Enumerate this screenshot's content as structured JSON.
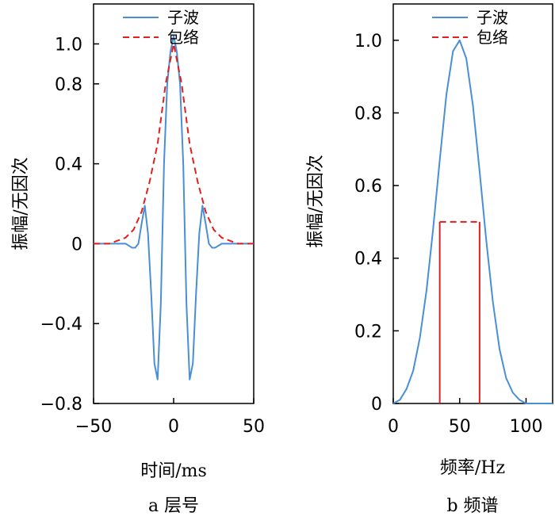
{
  "colors": {
    "wavelet": "#4a8fd4",
    "envelope": "#e02020",
    "axis": "#000000"
  },
  "chart_data": [
    {
      "type": "line",
      "xlabel": "时间/ms",
      "ylabel": "振幅/无因次",
      "caption": "a 层号",
      "xlim": [
        -50,
        50
      ],
      "ylim": [
        -0.8,
        1.2
      ],
      "xticks": [
        -50,
        0,
        50
      ],
      "xtick_labels": [
        "−50",
        "0",
        "50"
      ],
      "yticks": [
        -0.8,
        -0.4,
        0,
        0.4,
        0.8,
        1.0
      ],
      "ytick_labels": [
        "−0.8",
        "−0.4",
        "0",
        "0.4",
        "0.8",
        "1.0"
      ],
      "legend": [
        "子波",
        "包络"
      ],
      "legend_position": "top-right",
      "series": [
        {
          "name": "子波",
          "style": "solid",
          "x": [
            -50,
            -30,
            -26,
            -24,
            -22,
            -20,
            -18,
            -16,
            -14,
            -12,
            -10,
            -8,
            -6,
            -4,
            -2,
            0,
            2,
            4,
            6,
            8,
            10,
            12,
            14,
            16,
            18,
            20,
            22,
            24,
            26,
            30,
            50
          ],
          "y": [
            0,
            0,
            -0.02,
            -0.02,
            0.0,
            0.1,
            0.19,
            0.05,
            -0.25,
            -0.6,
            -0.68,
            -0.3,
            0.4,
            0.8,
            0.96,
            1.04,
            0.96,
            0.8,
            0.4,
            -0.3,
            -0.68,
            -0.6,
            -0.25,
            0.05,
            0.19,
            0.1,
            0.0,
            -0.02,
            -0.02,
            0,
            0
          ]
        },
        {
          "name": "包络",
          "style": "dashed",
          "x": [
            -50,
            -40,
            -30,
            -25,
            -20,
            -15,
            -10,
            -5,
            0,
            5,
            10,
            15,
            20,
            25,
            30,
            40,
            50
          ],
          "y": [
            0.0,
            0.0,
            0.03,
            0.07,
            0.16,
            0.31,
            0.5,
            0.8,
            1.0,
            0.8,
            0.5,
            0.31,
            0.16,
            0.07,
            0.03,
            0.0,
            0.0
          ]
        }
      ]
    },
    {
      "type": "line",
      "xlabel": "频率/Hz",
      "ylabel": "振幅/无因次",
      "caption": "b 频谱",
      "xlim": [
        0,
        120
      ],
      "ylim": [
        0,
        1.1
      ],
      "xticks": [
        0,
        50,
        100
      ],
      "xtick_labels": [
        "0",
        "50",
        "100"
      ],
      "yticks": [
        0,
        0.2,
        0.4,
        0.6,
        0.8,
        1.0
      ],
      "ytick_labels": [
        "0",
        "0.2",
        "0.4",
        "0.6",
        "0.8",
        "1.0"
      ],
      "legend": [
        "子波",
        "包络"
      ],
      "legend_position": "top-right",
      "series": [
        {
          "name": "子波",
          "style": "solid",
          "x": [
            0,
            5,
            10,
            15,
            20,
            25,
            30,
            35,
            40,
            45,
            50,
            55,
            60,
            65,
            70,
            75,
            80,
            85,
            90,
            95,
            100,
            110,
            120
          ],
          "y": [
            0.0,
            0.01,
            0.04,
            0.09,
            0.18,
            0.31,
            0.48,
            0.67,
            0.85,
            0.97,
            1.0,
            0.95,
            0.82,
            0.64,
            0.45,
            0.28,
            0.15,
            0.07,
            0.03,
            0.01,
            0.0,
            0.0,
            0.0
          ]
        },
        {
          "name": "包络",
          "style": "dashed-top-solid-sides",
          "x": [
            35,
            35,
            65,
            65
          ],
          "y": [
            0.0,
            0.5,
            0.5,
            0.0
          ]
        }
      ]
    }
  ]
}
